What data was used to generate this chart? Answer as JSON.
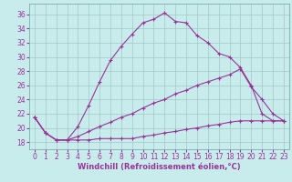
{
  "background_color": "#c8ecec",
  "grid_color": "#a0c8c8",
  "line_color": "#993399",
  "spine_color": "#7aacac",
  "xlim": [
    -0.5,
    23.5
  ],
  "ylim": [
    17,
    37.5
  ],
  "xticks": [
    0,
    1,
    2,
    3,
    4,
    5,
    6,
    7,
    8,
    9,
    10,
    11,
    12,
    13,
    14,
    15,
    16,
    17,
    18,
    19,
    20,
    21,
    22,
    23
  ],
  "yticks": [
    18,
    20,
    22,
    24,
    26,
    28,
    30,
    32,
    34,
    36
  ],
  "xlabel": "Windchill (Refroidissement éolien,°C)",
  "line1_x": [
    0,
    1,
    2,
    3,
    4,
    5,
    6,
    7,
    8,
    9,
    10,
    11,
    12,
    13,
    14,
    15,
    16,
    17,
    18,
    19,
    20,
    21,
    22,
    23
  ],
  "line1_y": [
    21.5,
    19.3,
    18.3,
    18.3,
    20.2,
    23.2,
    26.5,
    29.5,
    31.5,
    33.2,
    34.8,
    35.3,
    36.2,
    35.0,
    34.8,
    33.0,
    32.0,
    30.5,
    30.0,
    28.5,
    26.0,
    22.0,
    21.0,
    21.0
  ],
  "line2_x": [
    0,
    1,
    2,
    3,
    4,
    5,
    6,
    7,
    8,
    9,
    10,
    11,
    12,
    13,
    14,
    15,
    16,
    17,
    18,
    19,
    20,
    21,
    22,
    23
  ],
  "line2_y": [
    21.5,
    19.3,
    18.3,
    18.3,
    18.8,
    19.5,
    20.2,
    20.8,
    21.5,
    22.0,
    22.8,
    23.5,
    24.0,
    24.8,
    25.3,
    26.0,
    26.5,
    27.0,
    27.5,
    28.3,
    25.8,
    24.0,
    22.0,
    21.0
  ],
  "line3_x": [
    0,
    1,
    2,
    3,
    4,
    5,
    6,
    7,
    8,
    9,
    10,
    11,
    12,
    13,
    14,
    15,
    16,
    17,
    18,
    19,
    20,
    21,
    22,
    23
  ],
  "line3_y": [
    21.5,
    19.3,
    18.3,
    18.3,
    18.3,
    18.3,
    18.5,
    18.5,
    18.5,
    18.5,
    18.8,
    19.0,
    19.3,
    19.5,
    19.8,
    20.0,
    20.3,
    20.5,
    20.8,
    21.0,
    21.0,
    21.0,
    21.0,
    21.0
  ],
  "tick_fontsize": 5.5,
  "label_fontsize": 6.0
}
